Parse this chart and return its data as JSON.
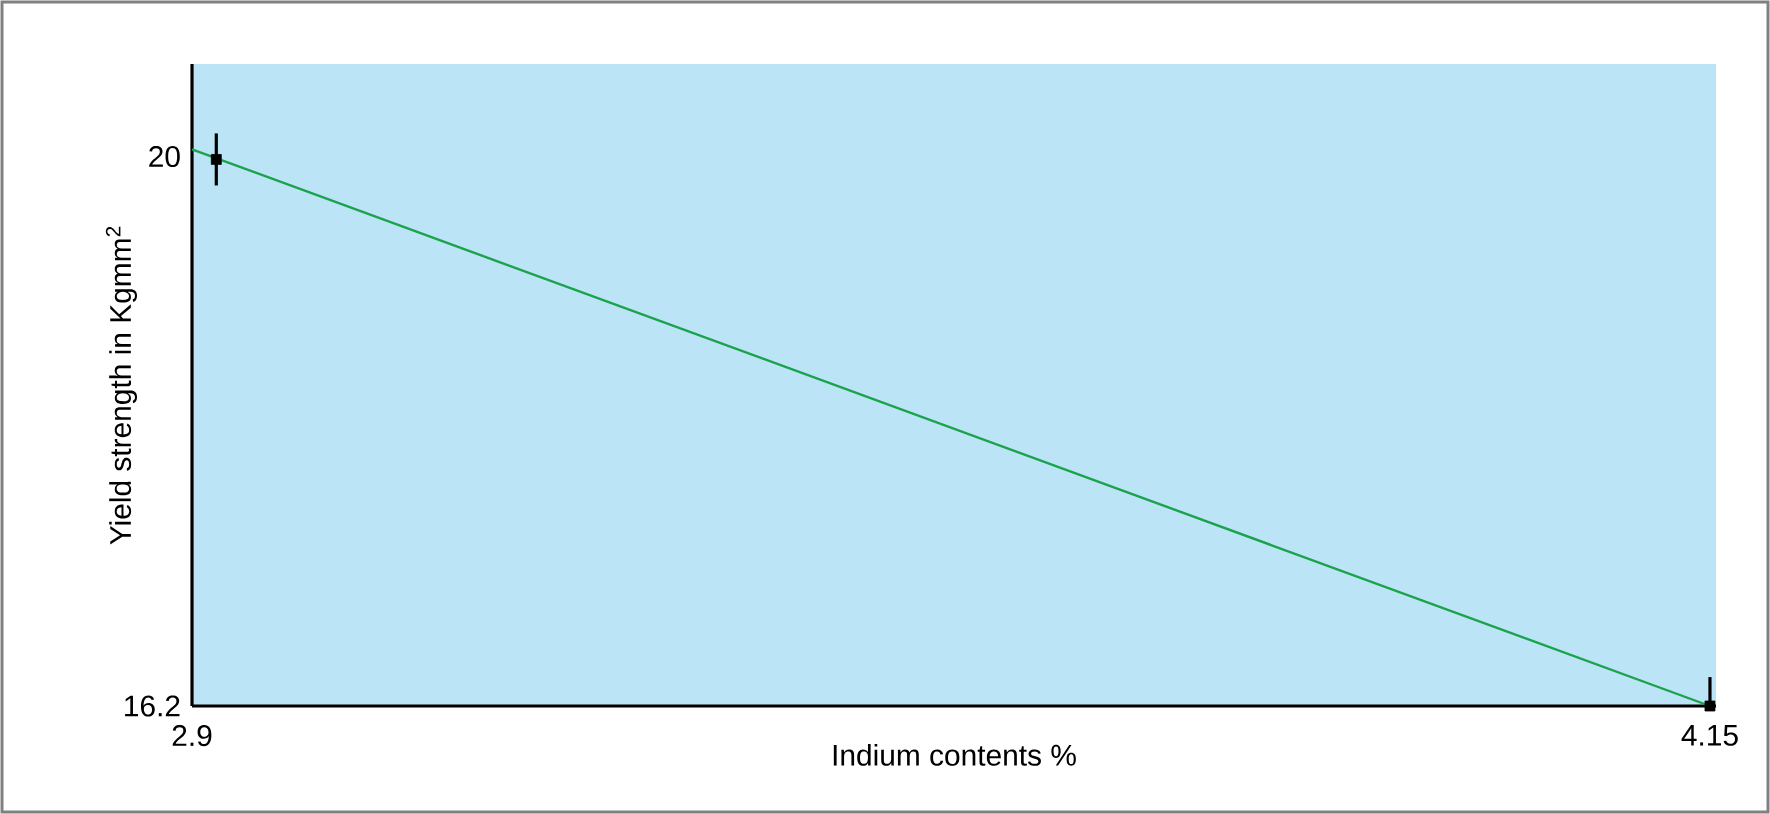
{
  "chart_data": {
    "type": "line",
    "xlabel": "Indium contents %",
    "ylabel": "Yield strength in Kgmm$^{2}$",
    "xlim": [
      2.9,
      4.155
    ],
    "ylim": [
      16.2,
      20.64
    ],
    "xticks": [
      2.9,
      4.15
    ],
    "yticks": [
      16.2,
      20
    ],
    "grid": false,
    "series": [
      {
        "color": "#1aa34a",
        "x": [
          2.9,
          4.15
        ],
        "values": [
          20.05,
          16.2
        ],
        "marker": "none"
      },
      {
        "type": "scatter",
        "color": "#000000",
        "x": [
          2.92,
          4.15
        ],
        "values": [
          19.98,
          16.2
        ],
        "errors": [
          0.18,
          [
            16.2,
            16.4
          ]
        ],
        "marker": "square"
      }
    ]
  }
}
